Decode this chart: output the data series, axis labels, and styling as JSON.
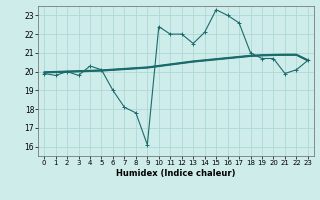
{
  "xlabel": "Humidex (Indice chaleur)",
  "ylabel": "",
  "xlim": [
    -0.5,
    23.5
  ],
  "ylim": [
    15.5,
    23.5
  ],
  "yticks": [
    16,
    17,
    18,
    19,
    20,
    21,
    22,
    23
  ],
  "xticks": [
    0,
    1,
    2,
    3,
    4,
    5,
    6,
    7,
    8,
    9,
    10,
    11,
    12,
    13,
    14,
    15,
    16,
    17,
    18,
    19,
    20,
    21,
    22,
    23
  ],
  "background_color": "#ceecea",
  "grid_color": "#aed8d4",
  "line_color": "#1a6b6b",
  "main_line_x": [
    0,
    1,
    2,
    3,
    4,
    5,
    6,
    7,
    8,
    9,
    10,
    11,
    12,
    13,
    14,
    15,
    16,
    17,
    18,
    19,
    20,
    21,
    22,
    23
  ],
  "main_line_y": [
    19.9,
    19.8,
    20.0,
    19.8,
    20.3,
    20.1,
    19.0,
    18.1,
    17.8,
    16.1,
    22.4,
    22.0,
    22.0,
    21.5,
    22.1,
    23.3,
    23.0,
    22.6,
    21.0,
    20.7,
    20.7,
    19.9,
    20.1,
    20.6
  ],
  "smooth_lines": [
    [
      19.93,
      19.95,
      19.97,
      19.99,
      20.01,
      20.03,
      20.07,
      20.11,
      20.15,
      20.19,
      20.27,
      20.35,
      20.43,
      20.51,
      20.57,
      20.63,
      20.69,
      20.75,
      20.81,
      20.84,
      20.86,
      20.87,
      20.87,
      20.57
    ],
    [
      19.95,
      19.97,
      19.99,
      20.01,
      20.03,
      20.05,
      20.09,
      20.13,
      20.17,
      20.21,
      20.29,
      20.37,
      20.45,
      20.53,
      20.59,
      20.65,
      20.71,
      20.77,
      20.83,
      20.86,
      20.88,
      20.89,
      20.89,
      20.59
    ],
    [
      19.97,
      19.99,
      20.01,
      20.03,
      20.05,
      20.07,
      20.11,
      20.15,
      20.19,
      20.23,
      20.31,
      20.39,
      20.47,
      20.55,
      20.61,
      20.67,
      20.73,
      20.79,
      20.85,
      20.88,
      20.9,
      20.91,
      20.91,
      20.61
    ],
    [
      19.99,
      20.01,
      20.03,
      20.05,
      20.07,
      20.09,
      20.13,
      20.17,
      20.21,
      20.25,
      20.33,
      20.41,
      20.49,
      20.57,
      20.63,
      20.69,
      20.75,
      20.81,
      20.87,
      20.9,
      20.92,
      20.93,
      20.93,
      20.63
    ]
  ]
}
